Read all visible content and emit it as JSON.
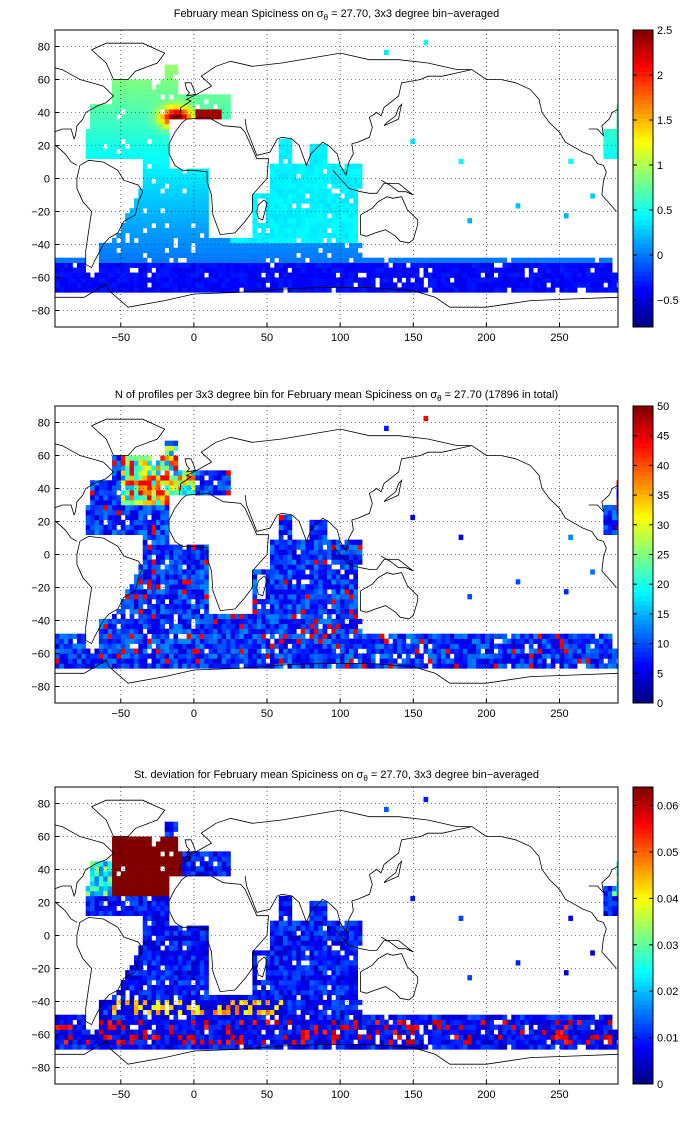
{
  "panels": [
    {
      "title_pre": "February mean Spiciness on σ",
      "title_sub": "θ",
      "title_post": " = 27.70, 3x3 degree bin−averaged",
      "colorbar": {
        "min": -0.8,
        "max": 2.5,
        "ticks": [
          -0.5,
          0,
          0.5,
          1,
          1.5,
          2,
          2.5
        ],
        "tick_labels": [
          "−0.5",
          "0",
          "0.5",
          "1",
          "1.5",
          "2",
          "2.5"
        ]
      },
      "field": "spice"
    },
    {
      "title_pre": "N of profiles per 3x3 degree bin for February mean Spiciness on σ",
      "title_sub": "θ",
      "title_post": " = 27.70 (17896 in total)",
      "colorbar": {
        "min": 0,
        "max": 50,
        "ticks": [
          0,
          5,
          10,
          15,
          20,
          25,
          30,
          35,
          40,
          45,
          50
        ],
        "tick_labels": [
          "0",
          "5",
          "10",
          "15",
          "20",
          "25",
          "30",
          "35",
          "40",
          "45",
          "50"
        ]
      },
      "field": "count"
    },
    {
      "title_pre": "St. deviation for February mean Spiciness on σ",
      "title_sub": "θ",
      "title_post": " = 27.70, 3x3 degree bin−averaged",
      "colorbar": {
        "min": 0,
        "max": 0.064,
        "ticks": [
          0,
          0.01,
          0.02,
          0.03,
          0.04,
          0.05,
          0.06
        ],
        "tick_labels": [
          "0",
          "0.01",
          "0.02",
          "0.03",
          "0.04",
          "0.05",
          "0.06"
        ]
      },
      "field": "std"
    }
  ],
  "axes": {
    "x_range": [
      -95,
      290
    ],
    "y_range": [
      -90,
      90
    ],
    "x_ticks": [
      -50,
      0,
      50,
      100,
      150,
      200,
      250
    ],
    "x_tick_labels": [
      "−50",
      "0",
      "50",
      "100",
      "150",
      "200",
      "250"
    ],
    "y_ticks": [
      -80,
      -60,
      -40,
      -20,
      0,
      20,
      40,
      60,
      80
    ],
    "y_tick_labels": [
      "−80",
      "−60",
      "−40",
      "−20",
      "0",
      "20",
      "40",
      "60",
      "80"
    ],
    "grid": "dotted"
  }
}
